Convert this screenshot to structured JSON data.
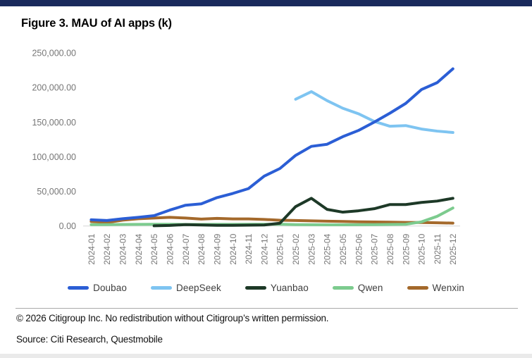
{
  "header": {
    "title": "Figure 3. MAU of AI apps (k)"
  },
  "footer": {
    "copyright": "© 2026 Citigroup Inc. No redistribution without Citigroup’s written permission.",
    "source": "Source: Citi Research, Questmobile"
  },
  "colors": {
    "top_bar": "#1a2a5c",
    "axis_text": "#767676",
    "legend_text": "#3d3d3d",
    "baseline": "#d9d9d9"
  },
  "chart_data": {
    "type": "line",
    "title": "Figure 3. MAU of AI apps (k)",
    "xlabel": "",
    "ylabel": "",
    "ylim": [
      0,
      250000
    ],
    "grid": "baseline-only",
    "legend_position": "bottom",
    "y_ticks": [
      {
        "value": 0,
        "label": "0.00"
      },
      {
        "value": 50000,
        "label": "50,000.00"
      },
      {
        "value": 100000,
        "label": "100,000.00"
      },
      {
        "value": 150000,
        "label": "150,000.00"
      },
      {
        "value": 200000,
        "label": "200,000.00"
      },
      {
        "value": 250000,
        "label": "250,000.00"
      }
    ],
    "x": [
      "2024-01",
      "2024-02",
      "2024-03",
      "2024-04",
      "2024-05",
      "2024-06",
      "2024-07",
      "2024-08",
      "2024-09",
      "2024-10",
      "2024-11",
      "2024-12",
      "2025-01",
      "2025-02",
      "2025-03",
      "2025-04",
      "2025-05",
      "2025-06",
      "2025-07",
      "2025-08",
      "2025-09",
      "2025-10",
      "2025-11",
      "2025-12"
    ],
    "series": [
      {
        "name": "Wenxin",
        "color": "#a4692b",
        "values": [
          6500,
          5000,
          8500,
          10500,
          11500,
          12500,
          11500,
          10000,
          11000,
          10300,
          10200,
          9500,
          8300,
          8000,
          7500,
          7000,
          6500,
          6000,
          5800,
          5500,
          5200,
          5000,
          4600,
          4200
        ]
      },
      {
        "name": "Qwen",
        "color": "#7ccb8e",
        "values": [
          2000,
          2000,
          2200,
          2400,
          2500,
          2500,
          2300,
          2300,
          2400,
          2400,
          2500,
          2500,
          2600,
          2000,
          1800,
          1700,
          1700,
          1800,
          2000,
          2300,
          2500,
          6000,
          14000,
          26000
        ]
      },
      {
        "name": "Yuanbao",
        "color": "#1d3927",
        "values": [
          null,
          null,
          null,
          null,
          300,
          800,
          2000,
          1500,
          1000,
          1000,
          1200,
          1500,
          4000,
          28000,
          40000,
          24000,
          20000,
          22000,
          25000,
          31000,
          31000,
          34000,
          36000,
          40000
        ]
      },
      {
        "name": "DeepSeek",
        "color": "#7ec4f1",
        "values": [
          null,
          null,
          null,
          null,
          null,
          null,
          null,
          null,
          null,
          null,
          null,
          null,
          null,
          183000,
          194000,
          181000,
          170000,
          162000,
          151000,
          144000,
          145000,
          140000,
          137000,
          135000
        ]
      },
      {
        "name": "Doubao",
        "color": "#2b5ed5",
        "values": [
          9000,
          8000,
          10500,
          12500,
          15000,
          23000,
          30000,
          32000,
          41000,
          47000,
          54000,
          72000,
          83000,
          102000,
          115000,
          118000,
          129000,
          138000,
          150000,
          163000,
          177000,
          197000,
          207000,
          227000
        ]
      }
    ],
    "legend_order": [
      "Doubao",
      "DeepSeek",
      "Yuanbao",
      "Qwen",
      "Wenxin"
    ]
  }
}
